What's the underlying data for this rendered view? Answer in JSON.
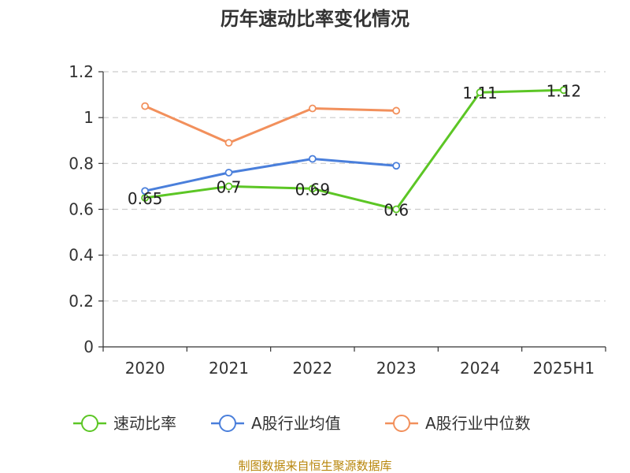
{
  "chart_data": {
    "type": "line",
    "title": "历年速动比率变化情况",
    "categories": [
      "2020",
      "2021",
      "2022",
      "2023",
      "2024",
      "2025H1"
    ],
    "ylim": [
      0,
      1.2
    ],
    "yticks": [
      "0",
      "0.2",
      "0.4",
      "0.6",
      "0.8",
      "1",
      "1.2"
    ],
    "grid": true,
    "legend_position": "bottom",
    "series": [
      {
        "name": "速动比率",
        "color": "#5cc625",
        "values": [
          0.65,
          0.7,
          0.69,
          0.6,
          1.11,
          1.12
        ],
        "labels": [
          "0.65",
          "0.7",
          "0.69",
          "0.6",
          "1.11",
          "1.12"
        ],
        "show_labels": true
      },
      {
        "name": "A股行业均值",
        "color": "#4a7fdb",
        "values": [
          0.68,
          0.76,
          0.82,
          0.79,
          null,
          null
        ],
        "show_labels": false
      },
      {
        "name": "A股行业中位数",
        "color": "#f2905c",
        "values": [
          1.05,
          0.89,
          1.04,
          1.03,
          null,
          null
        ],
        "show_labels": false
      }
    ]
  },
  "footer": {
    "source": "制图数据来自恒生聚源数据库"
  }
}
